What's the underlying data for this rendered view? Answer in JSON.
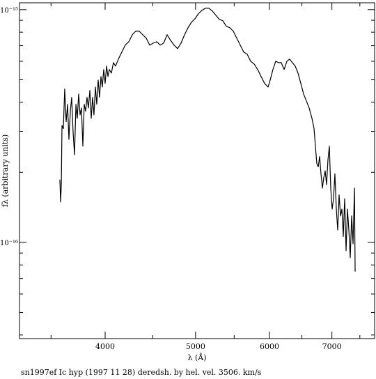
{
  "chart_data": {
    "type": "line",
    "x_label": "λ (Å)",
    "y_label": "fλ (arbitrary units)",
    "caption": "sn1997ef Ic hyp (1997 11 28) deredsh. by hel. vel.  3506. km/s",
    "xlog": true,
    "ylog": true,
    "color": "#000000",
    "xlim": [
      3238,
      7778
    ],
    "ylim": [
      3.86e-17,
      1.07e-15
    ],
    "xticks": [
      4000,
      5000,
      6000,
      7000
    ],
    "yticks": [
      {
        "value": 1e-15,
        "label": "10⁻¹⁵"
      },
      {
        "value": 1e-16,
        "label": "10⁻¹⁶"
      }
    ],
    "x_minor_ticks": [
      3500,
      4500,
      5500,
      6500,
      7500
    ],
    "y_minor_ticks": [
      4e-17,
      5e-17,
      6e-17,
      7e-17,
      8e-17,
      9e-17,
      2e-16,
      3e-16,
      4e-16,
      5e-16,
      6e-16,
      7e-16,
      8e-16,
      9e-16
    ],
    "x": [
      3577,
      3584,
      3590,
      3596,
      3608,
      3620,
      3633,
      3646,
      3658,
      3671,
      3683,
      3696,
      3709,
      3722,
      3734,
      3747,
      3760,
      3773,
      3786,
      3799,
      3812,
      3825,
      3838,
      3852,
      3865,
      3878,
      3891,
      3905,
      3918,
      3932,
      3945,
      3959,
      3972,
      3986,
      4000,
      4014,
      4028,
      4041,
      4062,
      4083,
      4104,
      4133,
      4168,
      4204,
      4241,
      4277,
      4314,
      4351,
      4389,
      4427,
      4465,
      4504,
      4542,
      4582,
      4621,
      4661,
      4701,
      4742,
      4783,
      4824,
      4866,
      4908,
      4950,
      4993,
      5036,
      5079,
      5123,
      5167,
      5212,
      5257,
      5302,
      5348,
      5394,
      5441,
      5488,
      5535,
      5583,
      5631,
      5680,
      5728,
      5778,
      5828,
      5878,
      5929,
      5980,
      6011,
      6052,
      6094,
      6136,
      6178,
      6221,
      6264,
      6307,
      6350,
      6394,
      6438,
      6483,
      6528,
      6573,
      6618,
      6664,
      6698,
      6721,
      6744,
      6768,
      6791,
      6814,
      6838,
      6861,
      6885,
      6909,
      6932,
      6956,
      6980,
      7004,
      7028,
      7052,
      7077,
      7101,
      7125,
      7150,
      7175,
      7199,
      7224,
      7249,
      7274,
      7299,
      7324,
      7350,
      7375,
      7401,
      7413
    ],
    "values": [
      1.86e-16,
      1.49e-16,
      1.77e-16,
      3.18e-16,
      3.08e-16,
      4.56e-16,
      3.3e-16,
      3.92e-16,
      2.77e-16,
      3.66e-16,
      4.2e-16,
      2.97e-16,
      2.38e-16,
      3.92e-16,
      3.41e-16,
      4.34e-16,
      3.53e-16,
      3.78e-16,
      2.59e-16,
      3.92e-16,
      3.66e-16,
      4.2e-16,
      3.78e-16,
      4.5e-16,
      3.41e-16,
      4.2e-16,
      3.53e-16,
      4.65e-16,
      3.92e-16,
      4.98e-16,
      4.2e-16,
      5.16e-16,
      4.65e-16,
      5.53e-16,
      4.82e-16,
      5.72e-16,
      5.16e-16,
      5.53e-16,
      5.34e-16,
      5.92e-16,
      5.72e-16,
      6.13e-16,
      6.57e-16,
      7.04e-16,
      7.28e-16,
      7.8e-16,
      8.08e-16,
      8.08e-16,
      7.8e-16,
      7.54e-16,
      7.04e-16,
      7.18e-16,
      7.28e-16,
      7.04e-16,
      7.18e-16,
      7.8e-16,
      7.38e-16,
      7.04e-16,
      6.8e-16,
      7.18e-16,
      7.8e-16,
      8.36e-16,
      8.83e-16,
      9.14e-16,
      9.6e-16,
      9.93e-16,
      1.014e-15,
      1.014e-15,
      9.86e-16,
      9.46e-16,
      9.08e-16,
      8.96e-16,
      8.48e-16,
      8.36e-16,
      8.08e-16,
      7.54e-16,
      7.04e-16,
      6.57e-16,
      6.43e-16,
      6e-16,
      5.84e-16,
      5.53e-16,
      5.16e-16,
      4.82e-16,
      4.65e-16,
      4.98e-16,
      5.53e-16,
      6e-16,
      5.92e-16,
      5.92e-16,
      5.53e-16,
      6e-16,
      6.13e-16,
      5.92e-16,
      5.72e-16,
      5.34e-16,
      4.82e-16,
      4.34e-16,
      4.05e-16,
      3.78e-16,
      3.41e-16,
      3.08e-16,
      2.59e-16,
      2.18e-16,
      2.11e-16,
      2.34e-16,
      1.97e-16,
      1.71e-16,
      1.9e-16,
      2.03e-16,
      1.77e-16,
      2.26e-16,
      2.59e-16,
      1.71e-16,
      1.39e-16,
      1.54e-16,
      1.97e-16,
      1.39e-16,
      1.13e-16,
      1.6e-16,
      1.3e-16,
      1.39e-16,
      1.06e-16,
      1.54e-16,
      9.21e-17,
      1.39e-16,
      1.13e-16,
      8.59e-17,
      1.3e-16,
      9.86e-17,
      1.71e-16,
      7.49e-17
    ]
  }
}
